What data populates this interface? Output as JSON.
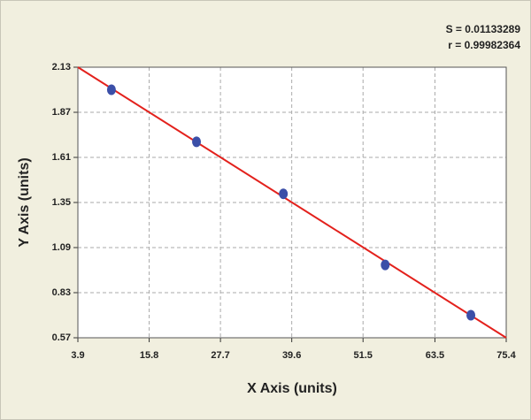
{
  "chart_data": {
    "type": "scatter",
    "xlabel": "X Axis (units)",
    "ylabel": "Y Axis (units)",
    "annotations": [
      "S = 0.01133289",
      "r = 0.99982364"
    ],
    "series": [
      {
        "x": [
          9.5,
          23.7,
          38.2,
          55.2,
          69.5
        ],
        "values": [
          2.0,
          1.7,
          1.4,
          0.99,
          0.7
        ],
        "color": "#3b4fa8"
      }
    ],
    "fit_line": {
      "x": [
        3.9,
        75.4
      ],
      "values": [
        2.13,
        0.57
      ],
      "color": "#e3211c"
    },
    "xlim": [
      3.9,
      75.4
    ],
    "xticks": [
      3.9,
      15.8,
      27.7,
      39.6,
      51.5,
      63.5,
      75.4
    ],
    "ylim": [
      0.57,
      2.13
    ],
    "yticks": [
      0.57,
      0.83,
      1.09,
      1.35,
      1.61,
      1.87,
      2.13
    ],
    "grid": true
  }
}
